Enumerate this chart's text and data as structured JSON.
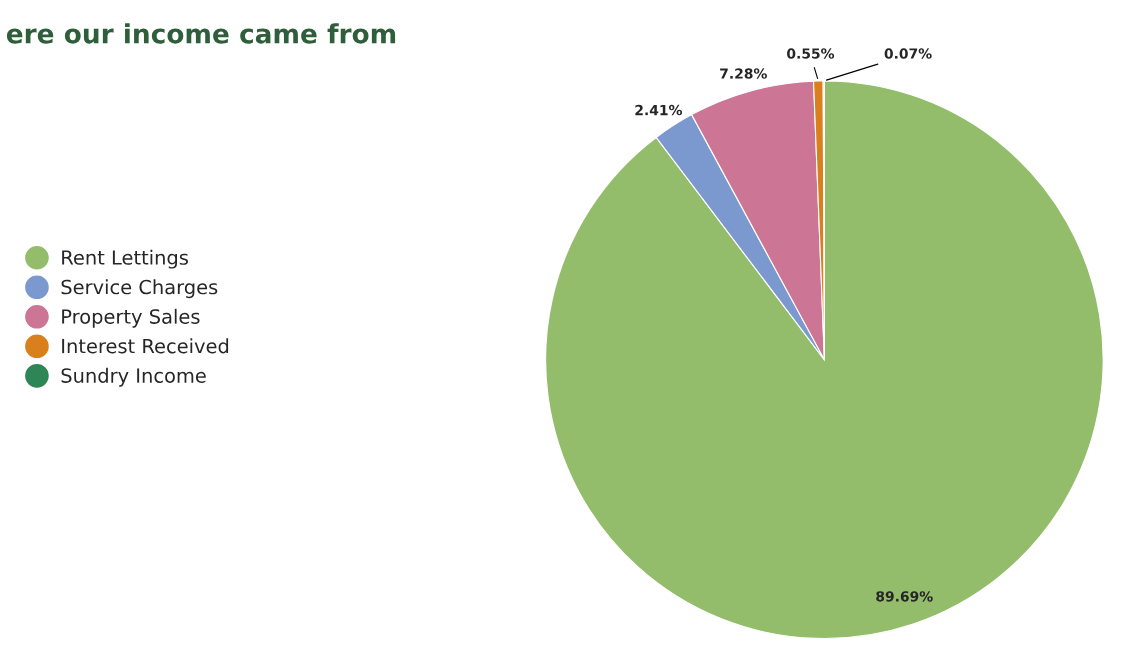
{
  "chart_data": {
    "type": "pie",
    "title": "ere our income came from",
    "categories": [
      "Rent Lettings",
      "Service Charges",
      "Property Sales",
      "Interest Received",
      "Sundry Income"
    ],
    "values": [
      89.69,
      2.41,
      7.28,
      0.55,
      0.07
    ],
    "value_labels": [
      "89.69%",
      "2.41%",
      "7.28%",
      "0.55%",
      "0.07%"
    ],
    "colors": [
      "#93bd6b",
      "#7b98cf",
      "#cc7595",
      "#d9801c",
      "#2e8555"
    ],
    "legend": "left"
  }
}
